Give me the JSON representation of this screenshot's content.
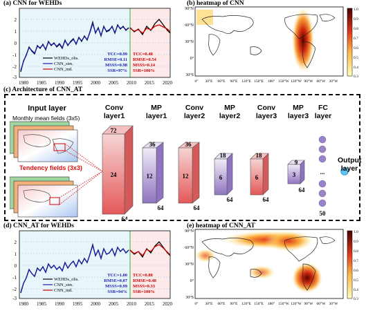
{
  "panel_a": {
    "title": "(a) CNN for WEHDs",
    "years": [
      "1980",
      "1985",
      "1990",
      "1995",
      "2000",
      "2005",
      "2010",
      "2015",
      "2020"
    ],
    "yticks": [
      "2",
      "1",
      "0",
      "-1",
      "-2",
      "-3"
    ],
    "legend": [
      "WEHDs_obs.",
      "CNN_sim.",
      "CNN_ind."
    ],
    "stats_sim": [
      "TCC=0.99",
      "RMSE=0.11",
      "MSSS=0.98",
      "SSR=97%"
    ],
    "stats_ind": [
      "TCC=0.48",
      "RMSE=0.54",
      "MSSS=0.14",
      "SSR=100%"
    ]
  },
  "panel_b": {
    "title": "(b) heatmap of CNN",
    "lat_labels": [
      "90°N",
      "60°N",
      "30°N",
      "0°",
      "30°S"
    ],
    "lon_labels": [
      "0°",
      "30°E",
      "60°E",
      "90°E",
      "120°E",
      "150°E",
      "180°",
      "150°W",
      "120°W",
      "90°W",
      "60°W",
      "30°W"
    ],
    "colorbar": [
      "1.0",
      "0.9",
      "0.8",
      "0.7",
      "0.6",
      "0.5",
      "0.4",
      "0.3"
    ]
  },
  "panel_c": {
    "title": "(c) Architecture of CNN_AT",
    "input_layer": "Input layer",
    "monthly": "Monthly mean fields (3x5)",
    "tendency": "Tendency fields (3x3)",
    "output_layer": "Output layer",
    "layers": [
      {
        "title": "Conv layer1",
        "top": "72",
        "mid": "24",
        "bottom": "64"
      },
      {
        "title": "MP layer1",
        "top": "36",
        "mid": "12",
        "bottom": "64"
      },
      {
        "title": "Conv layer2",
        "top": "36",
        "mid": "12",
        "bottom": "64"
      },
      {
        "title": "MP layer2",
        "top": "18",
        "mid": "6",
        "bottom": "64"
      },
      {
        "title": "Conv layer3",
        "top": "18",
        "mid": "6",
        "bottom": "64"
      },
      {
        "title": "MP layer3",
        "top": "9",
        "mid": "3",
        "bottom": "64"
      }
    ],
    "fc_title": "FC layer",
    "fc_count": "50",
    "fc_dots": "..."
  },
  "panel_d": {
    "title": "(d) CNN_AT for WEHDs",
    "years": [
      "1980",
      "1985",
      "1990",
      "1995",
      "2000",
      "2005",
      "2010",
      "2015",
      "2020"
    ],
    "yticks": [
      "2",
      "1",
      "0",
      "-1",
      "-2",
      "-3"
    ],
    "legend": [
      "WEHDs_obs.",
      "CNN_sim.",
      "CNN_ind."
    ],
    "stats_sim": [
      "TCC=1.00",
      "RMSE=0.07",
      "MSSS=0.99",
      "SSR=94%"
    ],
    "stats_ind": [
      "TCC=0.80",
      "RMSE=0.48",
      "MSSS=0.33",
      "SSR=100%"
    ]
  },
  "panel_e": {
    "title": "(e) heatmap of CNN_AT",
    "lat_labels": [
      "90°N",
      "60°N",
      "30°N",
      "0°",
      "30°S"
    ],
    "lon_labels": [
      "0°",
      "30°E",
      "60°E",
      "90°E",
      "120°E",
      "150°E",
      "180°",
      "150°W",
      "120°W",
      "90°W",
      "60°W",
      "30°W"
    ],
    "colorbar": [
      "1.0",
      "0.9",
      "0.8",
      "0.7",
      "0.6",
      "0.5",
      "0.4",
      "0.3"
    ]
  },
  "colors": {
    "obs": "#000000",
    "sim": "#1a1aa8",
    "ind": "#cc0000",
    "conv": "#e57070",
    "mp": "#9b84c8",
    "fc": "#9b84c8",
    "out": "#5bc4ee"
  }
}
